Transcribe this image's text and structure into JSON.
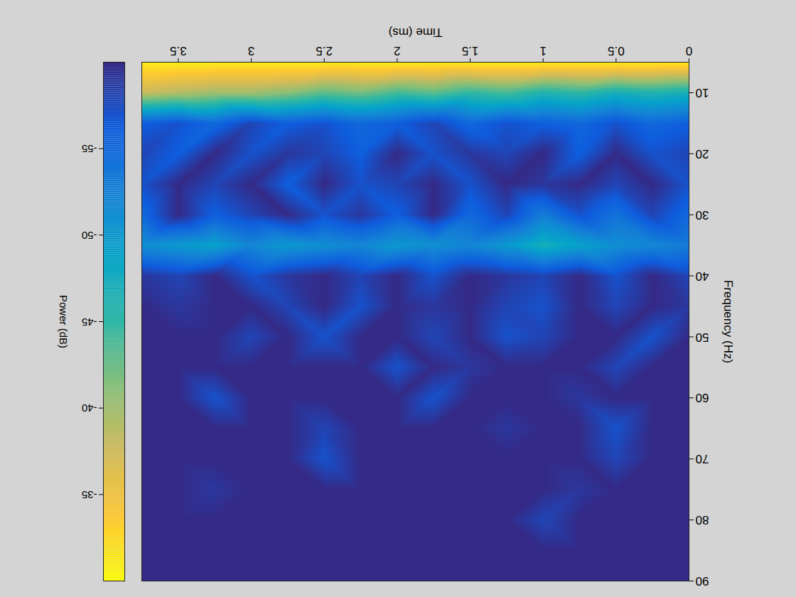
{
  "chart_data": {
    "type": "heatmap",
    "x_label": "Time (ms)",
    "y_label": "Frequency (Hz)",
    "x": [
      0,
      0.25,
      0.5,
      0.75,
      1,
      1.25,
      1.5,
      1.75,
      2,
      2.25,
      2.5,
      2.75,
      3,
      3.25,
      3.5,
      3.75
    ],
    "y": [
      5,
      10,
      15,
      20,
      25,
      30,
      35,
      40,
      45,
      50,
      55,
      60,
      65,
      70,
      75,
      80,
      85,
      90
    ],
    "values": [
      [
        -31,
        -31,
        -31,
        -31,
        -31,
        -31,
        -31,
        -31,
        -31,
        -31,
        -31,
        -31,
        -31,
        -31,
        -31,
        -31
      ],
      [
        -47,
        -46,
        -47,
        -45,
        -46,
        -44,
        -45,
        -43,
        -44,
        -42,
        -43,
        -41,
        -40,
        -40,
        -39,
        -38
      ],
      [
        -56,
        -55,
        -57,
        -55,
        -56,
        -57,
        -55,
        -58,
        -56,
        -55,
        -57,
        -56,
        -58,
        -55,
        -57,
        -56
      ],
      [
        -58,
        -57,
        -60,
        -56,
        -60,
        -58,
        -59,
        -57,
        -60,
        -56,
        -58,
        -59,
        -57,
        -60,
        -56,
        -58
      ],
      [
        -57,
        -60,
        -58,
        -60,
        -59,
        -60,
        -57,
        -60,
        -58,
        -57,
        -60,
        -56,
        -60,
        -58,
        -60,
        -57
      ],
      [
        -55,
        -58,
        -54,
        -57,
        -53,
        -58,
        -55,
        -60,
        -56,
        -59,
        -57,
        -60,
        -58,
        -56,
        -60,
        -55
      ],
      [
        -53,
        -52,
        -51,
        -49,
        -47,
        -50,
        -52,
        -51,
        -50,
        -52,
        -51,
        -50,
        -52,
        -49,
        -50,
        -51
      ],
      [
        -58,
        -60,
        -57,
        -60,
        -58,
        -59,
        -60,
        -57,
        -60,
        -58,
        -60,
        -59,
        -57,
        -60,
        -58,
        -59
      ],
      [
        -59,
        -60,
        -58,
        -60,
        -57,
        -58,
        -60,
        -59,
        -60,
        -57,
        -60,
        -58,
        -60,
        -60,
        -59,
        -60
      ],
      [
        -60,
        -57,
        -60,
        -60,
        -58,
        -57,
        -60,
        -58,
        -60,
        -60,
        -57,
        -60,
        -58,
        -60,
        -60,
        -60
      ],
      [
        -60,
        -60,
        -58,
        -60,
        -60,
        -60,
        -59,
        -60,
        -57,
        -60,
        -60,
        -60,
        -60,
        -60,
        -60,
        -60
      ],
      [
        -60,
        -60,
        -60,
        -59,
        -60,
        -60,
        -60,
        -57,
        -60,
        -60,
        -60,
        -60,
        -60,
        -57,
        -60,
        -60
      ],
      [
        -60,
        -60,
        -57,
        -60,
        -60,
        -59,
        -60,
        -60,
        -60,
        -60,
        -58,
        -60,
        -60,
        -60,
        -60,
        -60
      ],
      [
        -60,
        -60,
        -58,
        -60,
        -60,
        -60,
        -60,
        -60,
        -60,
        -60,
        -57,
        -60,
        -60,
        -60,
        -60,
        -60
      ],
      [
        -60,
        -60,
        -60,
        -59,
        -60,
        -60,
        -60,
        -60,
        -60,
        -60,
        -60,
        -60,
        -60,
        -59,
        -60,
        -60
      ],
      [
        -60,
        -60,
        -60,
        -60,
        -58,
        -60,
        -60,
        -60,
        -60,
        -60,
        -60,
        -60,
        -60,
        -60,
        -60,
        -60
      ],
      [
        -60,
        -60,
        -60,
        -60,
        -60,
        -60,
        -60,
        -60,
        -60,
        -60,
        -60,
        -60,
        -60,
        -60,
        -60,
        -60
      ],
      [
        -60,
        -60,
        -60,
        -60,
        -60,
        -60,
        -60,
        -60,
        -60,
        -60,
        -60,
        -60,
        -60,
        -60,
        -60,
        -60
      ]
    ],
    "xlim": [
      0,
      3.75
    ],
    "ylim": [
      5,
      90
    ],
    "xticks": [
      0,
      0.5,
      1,
      1.5,
      2,
      2.5,
      3,
      3.5
    ],
    "yticks": [
      10,
      20,
      30,
      40,
      50,
      60,
      70,
      80,
      90
    ],
    "colorbar": {
      "label": "Power (dB)",
      "range": [
        -60,
        -30
      ],
      "ticks": [
        -55,
        -50,
        -45,
        -40,
        -35
      ]
    }
  }
}
